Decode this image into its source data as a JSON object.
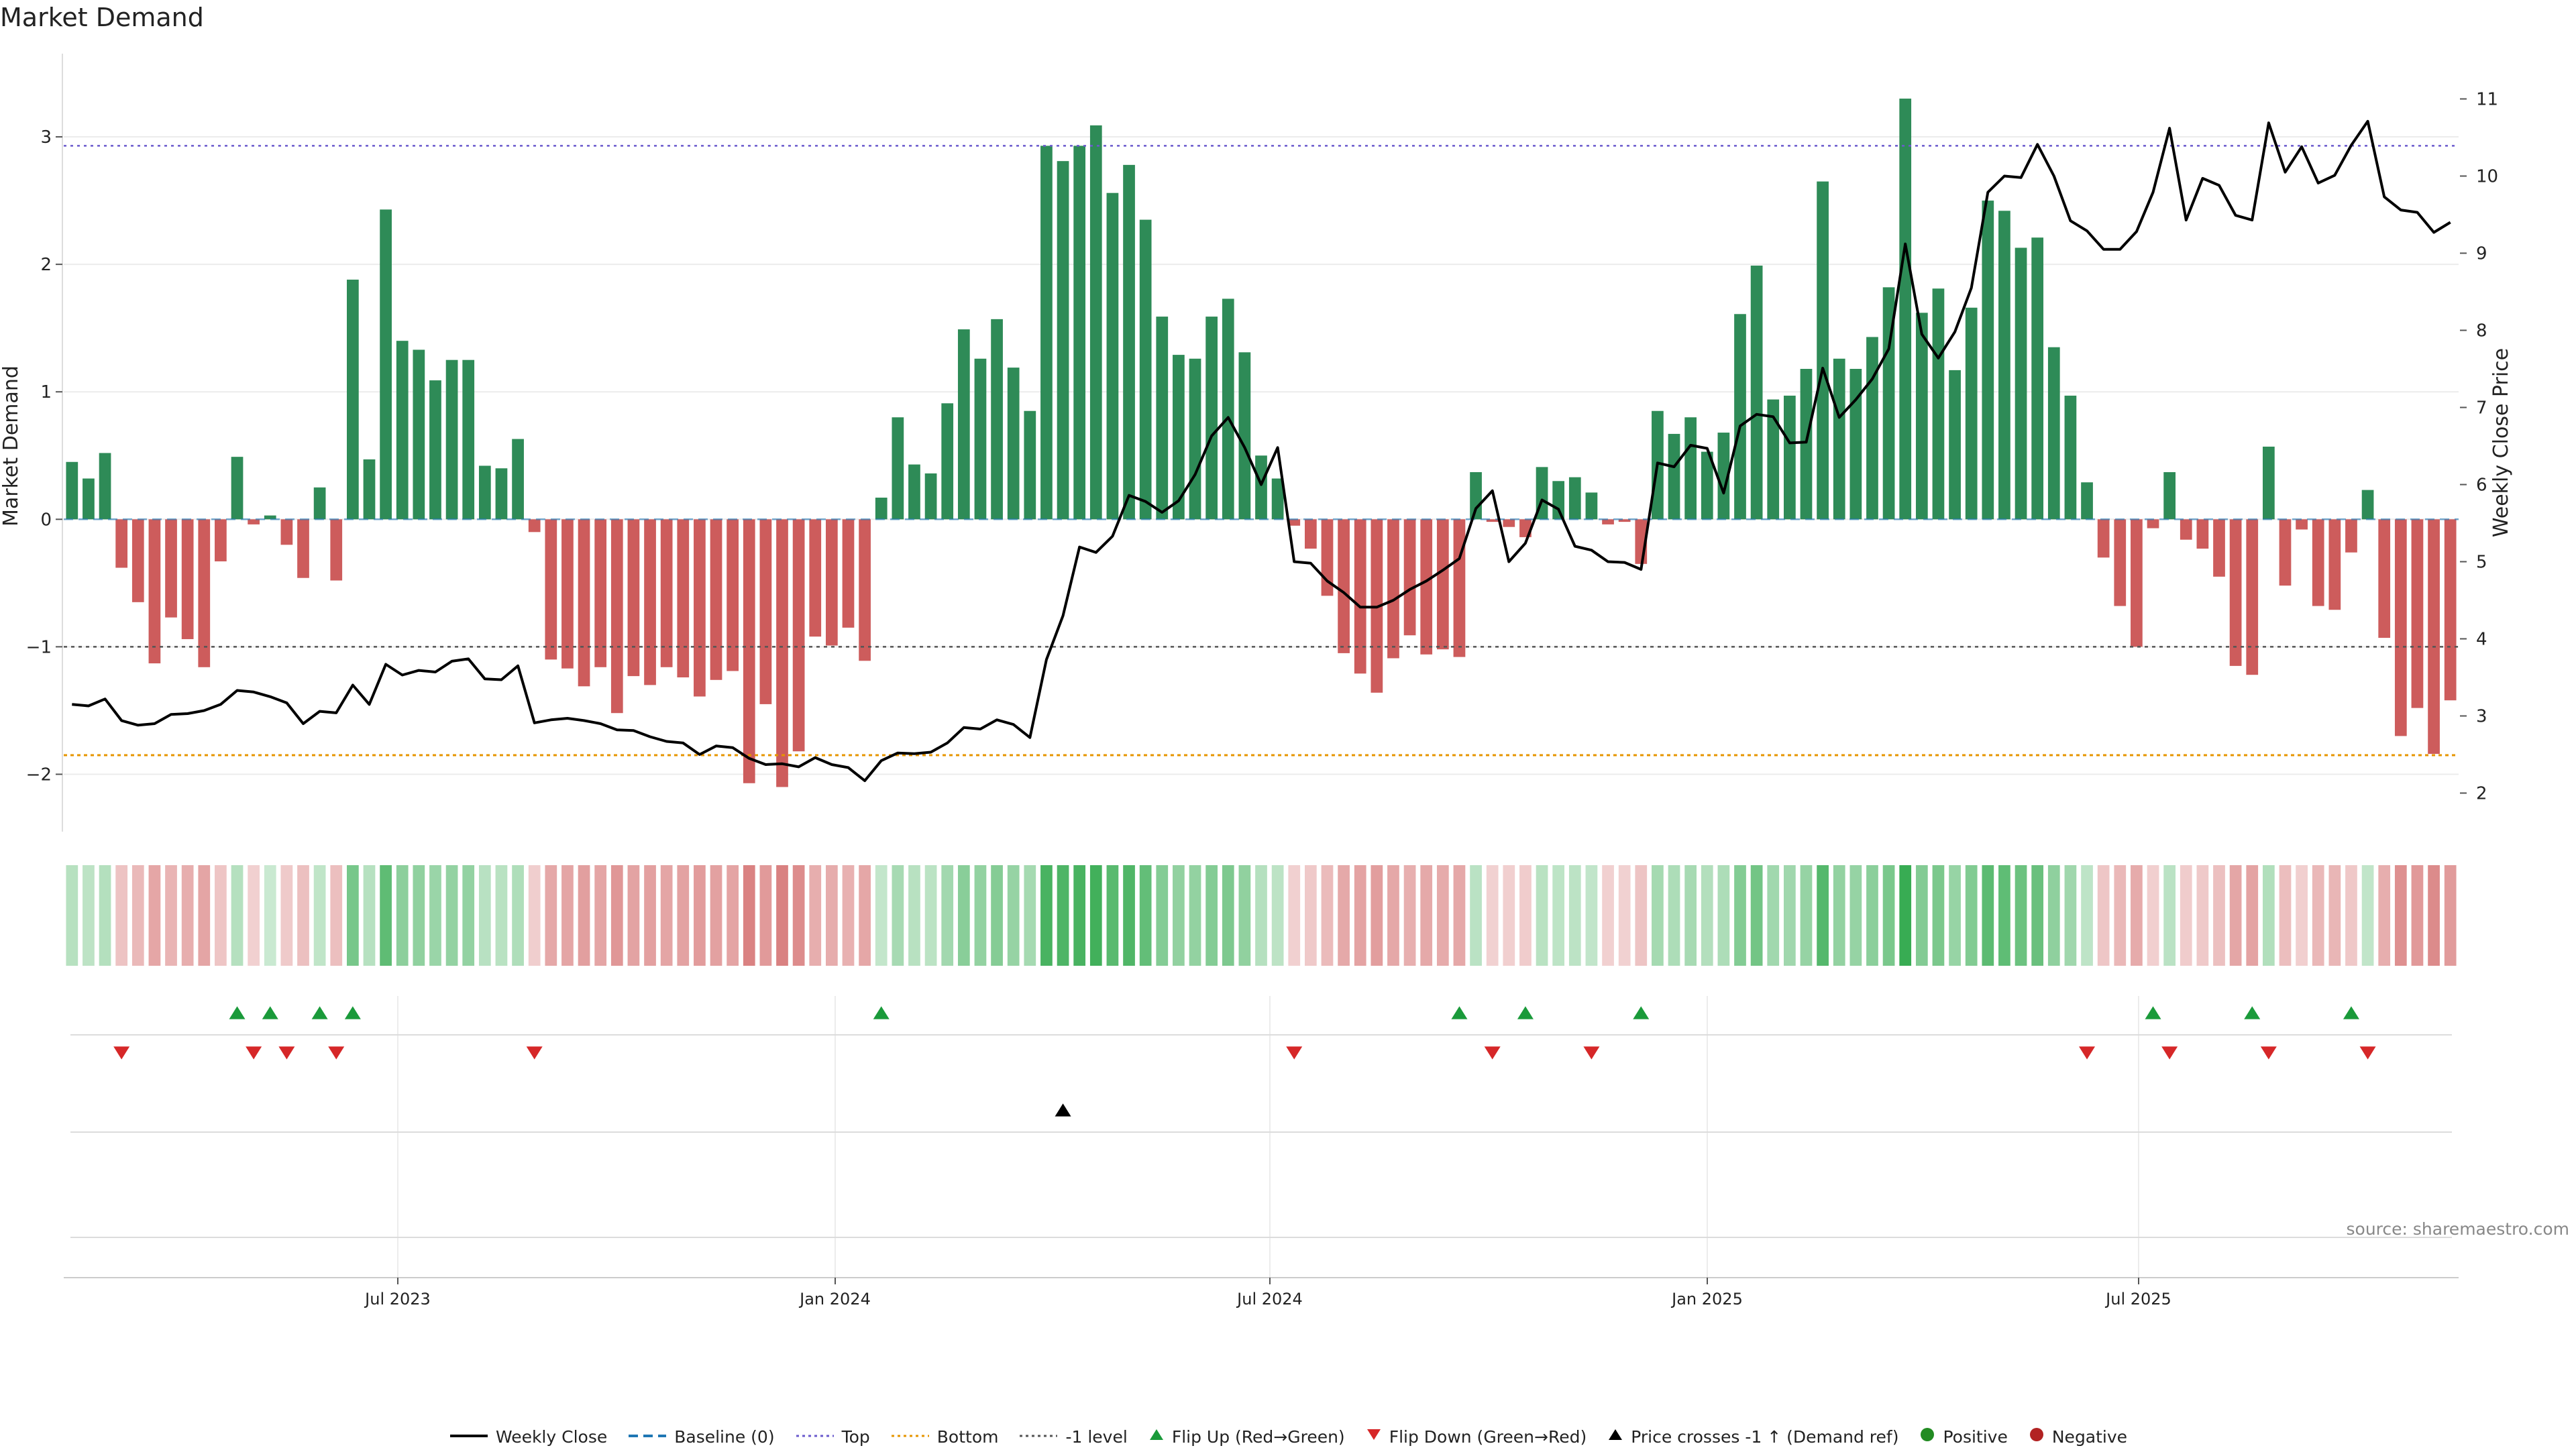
{
  "title": "Market Demand",
  "source_note": "source: sharemaestro.com",
  "colors": {
    "positive": "#2e8b57",
    "negative": "#cd5c5c",
    "price_line": "#000000",
    "top_line": "#6a5acd",
    "bottom_line": "#e69500",
    "minus1_line": "#555555",
    "baseline": "#1f77b4",
    "flip_up": "#1a9a3a",
    "flip_down": "#d62728"
  },
  "legend": [
    {
      "key": "weekly_close",
      "label": "Weekly Close",
      "icon": "solid-line-icon"
    },
    {
      "key": "baseline",
      "label": "Baseline (0)",
      "icon": "dashed-line-icon"
    },
    {
      "key": "top",
      "label": "Top",
      "icon": "dotted-line-icon"
    },
    {
      "key": "bottom",
      "label": "Bottom",
      "icon": "dotted-line-icon"
    },
    {
      "key": "minus1",
      "label": "-1 level",
      "icon": "dotted-line-icon"
    },
    {
      "key": "flip_up",
      "label": "Flip Up (Red→Green)",
      "icon": "triangle-up-icon"
    },
    {
      "key": "flip_down",
      "label": "Flip Down (Green→Red)",
      "icon": "triangle-down-icon"
    },
    {
      "key": "price_cross",
      "label": "Price crosses -1 ↑ (Demand ref)",
      "icon": "triangle-up-icon"
    },
    {
      "key": "positive",
      "label": "Positive",
      "icon": "circle-icon"
    },
    {
      "key": "negative",
      "label": "Negative",
      "icon": "circle-icon"
    }
  ],
  "chart_data": {
    "type": "bar",
    "x_labels": [
      "Jul 2023",
      "Jan 2024",
      "Jul 2024",
      "Jan 2025",
      "Jul 2025"
    ],
    "ylabel_left": "Market Demand",
    "ylabel_right": "Weekly Close Price",
    "ylim_left": [
      -2.45,
      3.6
    ],
    "ylim_right": [
      1.5,
      11.5
    ],
    "yticks_left": [
      -2,
      -1,
      0,
      1,
      2,
      3
    ],
    "yticks_right": [
      2,
      3,
      4,
      5,
      6,
      7,
      8,
      9,
      10,
      11
    ],
    "reference_levels": {
      "top": 2.93,
      "bottom": -1.85,
      "minus1": -1.0,
      "baseline": 0
    },
    "grid": true,
    "legend_position": "bottom-center",
    "series": [
      {
        "name": "Market Demand",
        "type": "bar",
        "values": [
          0.45,
          0.32,
          0.52,
          -0.38,
          -0.65,
          -1.13,
          -0.77,
          -0.94,
          -1.16,
          -0.33,
          0.49,
          -0.04,
          0.03,
          -0.2,
          -0.46,
          0.25,
          -0.48,
          1.88,
          0.47,
          2.43,
          1.4,
          1.33,
          1.09,
          1.25,
          1.25,
          0.42,
          0.4,
          0.63,
          -0.1,
          -1.1,
          -1.17,
          -1.31,
          -1.16,
          -1.52,
          -1.23,
          -1.3,
          -1.16,
          -1.24,
          -1.39,
          -1.26,
          -1.19,
          -2.07,
          -1.45,
          -2.1,
          -1.82,
          -0.92,
          -0.99,
          -0.85,
          -1.11,
          0.17,
          0.8,
          0.43,
          0.36,
          0.91,
          1.49,
          1.26,
          1.57,
          1.19,
          0.85,
          2.93,
          2.81,
          2.93,
          3.09,
          2.56,
          2.78,
          2.35,
          1.59,
          1.29,
          1.26,
          1.59,
          1.73,
          1.31,
          0.5,
          0.32,
          -0.05,
          -0.23,
          -0.6,
          -1.05,
          -1.21,
          -1.36,
          -1.09,
          -0.91,
          -1.06,
          -1.02,
          -1.08,
          0.37,
          -0.02,
          -0.06,
          -0.14,
          0.41,
          0.3,
          0.33,
          0.21,
          -0.04,
          -0.02,
          -0.35,
          0.85,
          0.67,
          0.8,
          0.53,
          0.68,
          1.61,
          1.99,
          0.94,
          0.97,
          1.18,
          2.65,
          1.26,
          1.18,
          1.43,
          1.82,
          3.3,
          1.62,
          1.81,
          1.17,
          1.66,
          2.5,
          2.42,
          2.13,
          2.21,
          1.35,
          0.97,
          0.29,
          -0.3,
          -0.68,
          -1.0,
          -0.07,
          0.37,
          -0.16,
          -0.23,
          -0.45,
          -1.15,
          -1.22,
          0.57,
          -0.52,
          -0.08,
          -0.68,
          -0.71,
          -0.26,
          0.23,
          -0.93,
          -1.7,
          -1.48,
          -1.84,
          -1.42
        ]
      },
      {
        "name": "Weekly Close",
        "type": "line",
        "values": [
          3.15,
          3.13,
          3.22,
          2.94,
          2.88,
          2.9,
          3.02,
          3.03,
          3.07,
          3.15,
          3.33,
          3.31,
          3.25,
          3.17,
          2.9,
          3.06,
          3.04,
          3.4,
          3.15,
          3.67,
          3.53,
          3.59,
          3.57,
          3.71,
          3.74,
          3.48,
          3.47,
          3.65,
          2.91,
          2.95,
          2.97,
          2.94,
          2.9,
          2.82,
          2.81,
          2.73,
          2.67,
          2.65,
          2.5,
          2.61,
          2.59,
          2.45,
          2.37,
          2.38,
          2.34,
          2.46,
          2.37,
          2.33,
          2.16,
          2.42,
          2.52,
          2.51,
          2.53,
          2.65,
          2.85,
          2.83,
          2.95,
          2.89,
          2.72,
          3.73,
          4.3,
          5.19,
          5.12,
          5.33,
          5.86,
          5.78,
          5.64,
          5.79,
          6.13,
          6.63,
          6.87,
          6.48,
          6.0,
          6.48,
          5.0,
          4.98,
          4.75,
          4.6,
          4.41,
          4.41,
          4.5,
          4.64,
          4.75,
          4.89,
          5.04,
          5.69,
          5.92,
          5.0,
          5.24,
          5.8,
          5.68,
          5.2,
          5.15,
          5.0,
          4.99,
          4.9,
          6.28,
          6.23,
          6.51,
          6.47,
          5.89,
          6.76,
          6.91,
          6.88,
          6.54,
          6.55,
          7.51,
          6.87,
          7.1,
          7.37,
          7.76,
          9.12,
          7.95,
          7.64,
          7.98,
          8.55,
          9.79,
          10.0,
          9.98,
          10.41,
          10.0,
          9.42,
          9.29,
          9.05,
          9.05,
          9.28,
          9.79,
          10.62,
          9.43,
          9.97,
          9.88,
          9.49,
          9.43,
          10.69,
          10.05,
          10.38,
          9.91,
          10.01,
          10.4,
          10.71,
          9.73,
          9.56,
          9.53,
          9.27,
          9.4
        ]
      }
    ],
    "strip_panel": "demand intensity heat strip",
    "flip_up_indices": [
      10,
      12,
      15,
      17,
      49,
      84,
      88,
      95,
      126,
      132,
      138
    ],
    "flip_down_indices": [
      3,
      11,
      13,
      16,
      28,
      74,
      86,
      92,
      122,
      127,
      133,
      139
    ],
    "price_cross_indices": [
      60
    ]
  }
}
